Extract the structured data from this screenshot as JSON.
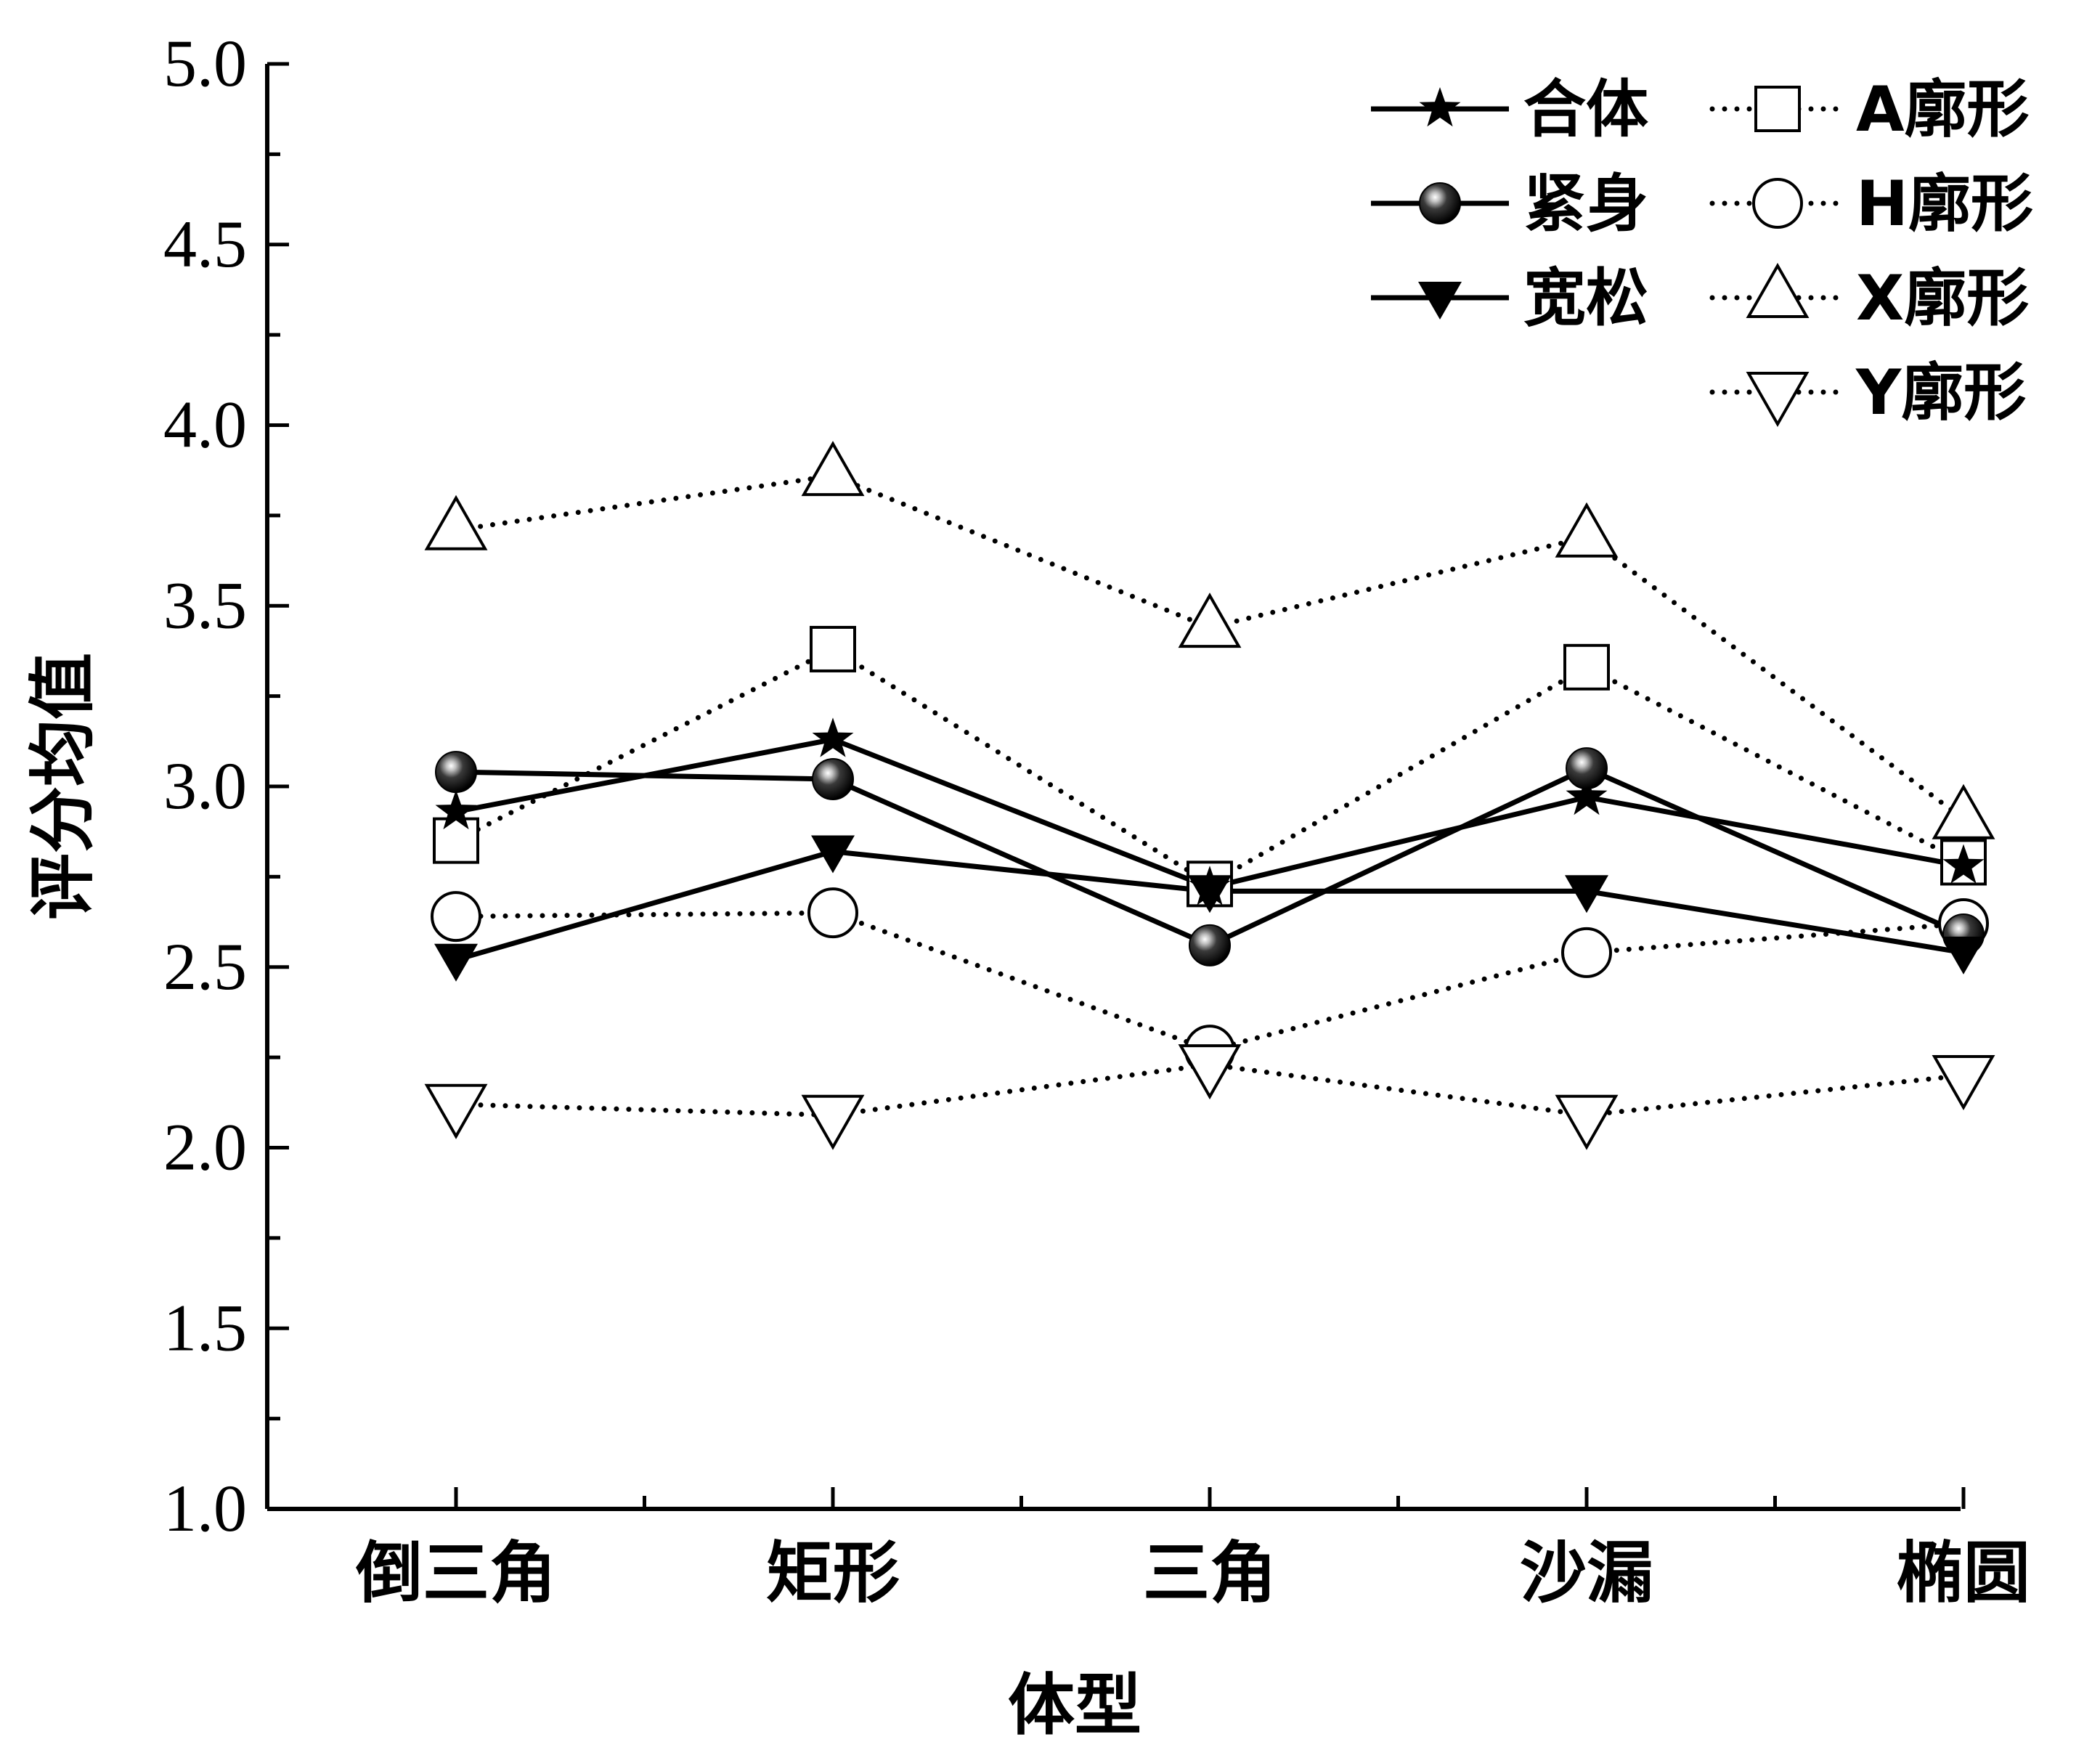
{
  "chart_data": {
    "type": "line",
    "title": "",
    "xlabel": "体型",
    "ylabel": "评分均值",
    "categories": [
      "倒三角",
      "矩形",
      "三角",
      "沙漏",
      "椭圆"
    ],
    "ylim": [
      1.0,
      5.0
    ],
    "yticks": [
      "1.0",
      "1.5",
      "2.0",
      "2.5",
      "3.0",
      "3.5",
      "4.0",
      "4.5",
      "5.0"
    ],
    "grid": false,
    "legend_position": "top-right",
    "series": [
      {
        "name": "合体",
        "marker": "star",
        "line": "solid",
        "values": [
          2.93,
          3.13,
          2.72,
          2.97,
          2.78
        ]
      },
      {
        "name": "紧身",
        "marker": "sphere",
        "line": "solid",
        "values": [
          3.04,
          3.02,
          2.56,
          3.05,
          2.59
        ]
      },
      {
        "name": "宽松",
        "marker": "triangle-down-filled",
        "line": "solid",
        "values": [
          2.52,
          2.82,
          2.71,
          2.71,
          2.54
        ]
      },
      {
        "name": "A廓形",
        "marker": "square-open",
        "line": "dotted",
        "values": [
          2.85,
          3.38,
          2.73,
          3.33,
          2.79
        ]
      },
      {
        "name": "H廓形",
        "marker": "circle-open",
        "line": "dotted",
        "values": [
          2.64,
          2.65,
          2.27,
          2.54,
          2.62
        ]
      },
      {
        "name": "X廓形",
        "marker": "triangle-up-open",
        "line": "dotted",
        "values": [
          3.71,
          3.86,
          3.44,
          3.69,
          2.91
        ]
      },
      {
        "name": "Y廓形",
        "marker": "triangle-down-open",
        "line": "dotted",
        "values": [
          2.12,
          2.09,
          2.23,
          2.09,
          2.2
        ]
      }
    ]
  }
}
